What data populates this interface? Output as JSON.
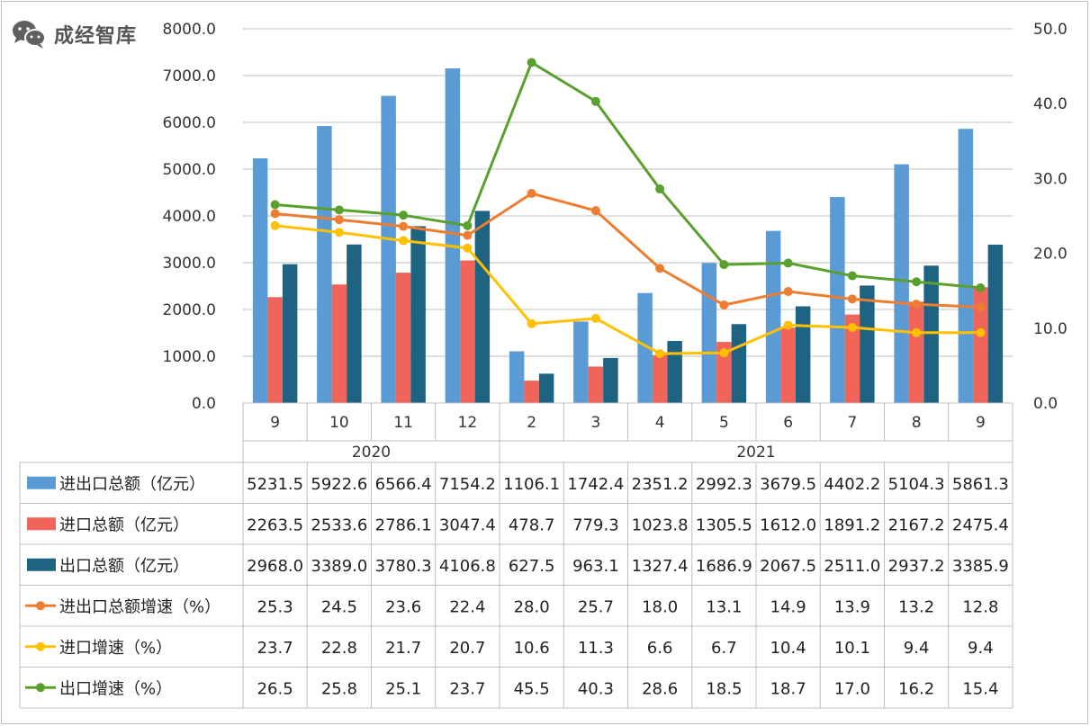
{
  "watermark": {
    "text": "成经智库",
    "icon": "wechat-icon"
  },
  "chart_data": {
    "type": "bar",
    "categories": [
      "9",
      "10",
      "11",
      "12",
      "2",
      "3",
      "4",
      "5",
      "6",
      "7",
      "8",
      "9"
    ],
    "groups": [
      {
        "label": "2020",
        "span": [
          0,
          3
        ]
      },
      {
        "label": "2021",
        "span": [
          4,
          11
        ]
      }
    ],
    "y_left": {
      "min": 0,
      "max": 8000,
      "step": 1000,
      "tick_labels": [
        "0.0",
        "1000.0",
        "2000.0",
        "3000.0",
        "4000.0",
        "5000.0",
        "6000.0",
        "7000.0",
        "8000.0"
      ]
    },
    "y_right": {
      "min": 0,
      "max": 50,
      "step": 10,
      "tick_labels": [
        "0.0",
        "10.0",
        "20.0",
        "30.0",
        "40.0",
        "50.0"
      ]
    },
    "grid": true,
    "legend": "table-left",
    "bar_series": [
      {
        "name": "进出口总额（亿元）",
        "color": "#5B9BD5",
        "axis": "left",
        "values": [
          5231.5,
          5922.6,
          6566.4,
          7154.2,
          1106.1,
          1742.4,
          2351.2,
          2992.3,
          3679.5,
          4402.2,
          5104.3,
          5861.3
        ],
        "labels": [
          "5231.5",
          "5922.6",
          "6566.4",
          "7154.2",
          "1106.1",
          "1742.4",
          "2351.2",
          "2992.3",
          "3679.5",
          "4402.2",
          "5104.3",
          "5861.3"
        ]
      },
      {
        "name": "进口总额（亿元）",
        "color": "#F0645A",
        "axis": "left",
        "values": [
          2263.5,
          2533.6,
          2786.1,
          3047.4,
          478.7,
          779.3,
          1023.8,
          1305.5,
          1612.0,
          1891.2,
          2167.2,
          2475.4
        ],
        "labels": [
          "2263.5",
          "2533.6",
          "2786.1",
          "3047.4",
          "478.7",
          "779.3",
          "1023.8",
          "1305.5",
          "1612.0",
          "1891.2",
          "2167.2",
          "2475.4"
        ]
      },
      {
        "name": "出口总额（亿元）",
        "color": "#1F6382",
        "axis": "left",
        "values": [
          2968.0,
          3389.0,
          3780.3,
          4106.8,
          627.5,
          963.1,
          1327.4,
          1686.9,
          2067.5,
          2511.0,
          2937.2,
          3385.9
        ],
        "labels": [
          "2968.0",
          "3389.0",
          "3780.3",
          "4106.8",
          "627.5",
          "963.1",
          "1327.4",
          "1686.9",
          "2067.5",
          "2511.0",
          "2937.2",
          "3385.9"
        ]
      }
    ],
    "line_series": [
      {
        "name": "进出口总额增速（%）",
        "color": "#ED7D31",
        "axis": "right",
        "values": [
          25.3,
          24.5,
          23.6,
          22.4,
          28.0,
          25.7,
          18.0,
          13.1,
          14.9,
          13.9,
          13.2,
          12.8
        ],
        "labels": [
          "25.3",
          "24.5",
          "23.6",
          "22.4",
          "28.0",
          "25.7",
          "18.0",
          "13.1",
          "14.9",
          "13.9",
          "13.2",
          "12.8"
        ]
      },
      {
        "name": "进口增速（%）",
        "color": "#FFC000",
        "axis": "right",
        "values": [
          23.7,
          22.8,
          21.7,
          20.7,
          10.6,
          11.3,
          6.6,
          6.7,
          10.4,
          10.1,
          9.4,
          9.4
        ],
        "labels": [
          "23.7",
          "22.8",
          "21.7",
          "20.7",
          "10.6",
          "11.3",
          "6.6",
          "6.7",
          "10.4",
          "10.1",
          "9.4",
          "9.4"
        ]
      },
      {
        "name": "出口增速（%）",
        "color": "#5AA02C",
        "axis": "right",
        "values": [
          26.5,
          25.8,
          25.1,
          23.7,
          45.5,
          40.3,
          28.6,
          18.5,
          18.7,
          17.0,
          16.2,
          15.4
        ],
        "labels": [
          "26.5",
          "25.8",
          "25.1",
          "23.7",
          "45.5",
          "40.3",
          "28.6",
          "18.5",
          "18.7",
          "17.0",
          "16.2",
          "15.4"
        ]
      }
    ]
  }
}
